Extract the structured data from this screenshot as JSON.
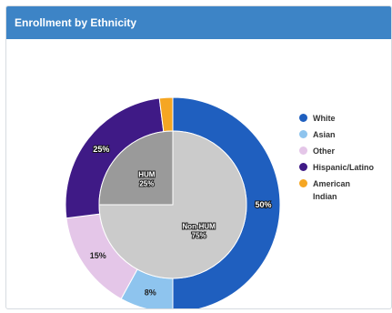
{
  "header": {
    "title": "Enrollment by Ethnicity"
  },
  "chart_data": {
    "type": "pie",
    "outer": [
      {
        "label": "White",
        "value": 50,
        "text": "50%",
        "color": "#1f5fbf"
      },
      {
        "label": "Asian",
        "value": 8,
        "text": "8%",
        "color": "#8ec4ee"
      },
      {
        "label": "Other",
        "value": 15,
        "text": "15%",
        "color": "#e4c6e8"
      },
      {
        "label": "Hispanic/Latino",
        "value": 25,
        "text": "25%",
        "color": "#3f1a86"
      },
      {
        "label": "American Indian",
        "value": 2,
        "text": "",
        "color": "#f5a623"
      }
    ],
    "inner": [
      {
        "label": "Non-HUM",
        "value": 75,
        "text": [
          "Non-HUM",
          "75%"
        ],
        "color": "#cbcbcb"
      },
      {
        "label": "HUM",
        "value": 25,
        "text": [
          "HUM",
          "25%"
        ],
        "color": "#9a9a9a"
      }
    ],
    "legend": [
      "White",
      "Asian",
      "Other",
      "Hispanic/Latino",
      "American Indian"
    ],
    "legend_placement": "right"
  },
  "legend_colors": [
    "#1f5fbf",
    "#8ec4ee",
    "#e4c6e8",
    "#3f1a86",
    "#f5a623"
  ]
}
